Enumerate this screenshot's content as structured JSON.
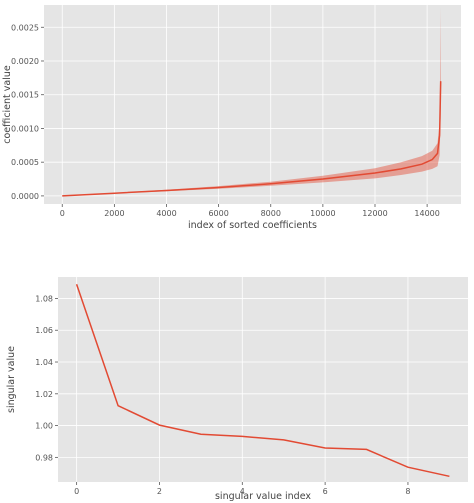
{
  "chart_data": [
    {
      "type": "area",
      "xlabel": "index of sorted coefficients",
      "ylabel": "coefficient value",
      "xlim": [
        -700,
        15300
      ],
      "ylim": [
        -0.00012,
        0.00283
      ],
      "xticks": [
        0,
        2000,
        4000,
        6000,
        8000,
        10000,
        12000,
        14000
      ],
      "yticks": [
        0.0,
        0.0005,
        0.001,
        0.0015,
        0.002,
        0.0025
      ],
      "ytick_labels": [
        "0.0000",
        "0.0005",
        "0.0010",
        "0.0015",
        "0.0020",
        "0.0025"
      ],
      "grid": true,
      "color": "#e24a33",
      "series": [
        {
          "x": [
            0,
            2000,
            4000,
            6000,
            8000,
            10000,
            12000,
            13000,
            13800,
            14200,
            14400,
            14480,
            14520
          ],
          "mean": [
            0.0,
            4e-05,
            8e-05,
            0.000125,
            0.00018,
            0.00025,
            0.00034,
            0.0004,
            0.00047,
            0.00054,
            0.00063,
            0.0009,
            0.0017
          ],
          "lower": [
            0.0,
            3.5e-05,
            7e-05,
            0.000105,
            0.00015,
            0.0002,
            0.00026,
            0.00031,
            0.00036,
            0.0004,
            0.00044,
            0.0006,
            0.0012
          ],
          "upper": [
            0.0,
            4.5e-05,
            9e-05,
            0.000145,
            0.00021,
            0.0003,
            0.00041,
            0.0005,
            0.00059,
            0.00067,
            0.00078,
            0.0011,
            0.0028
          ]
        }
      ]
    },
    {
      "type": "line",
      "xlabel": "singular value index",
      "ylabel": "singular value",
      "xlim": [
        -0.45,
        9.45
      ],
      "ylim": [
        0.9645,
        1.0935
      ],
      "xticks": [
        0,
        2,
        4,
        6,
        8
      ],
      "yticks": [
        0.98,
        1.0,
        1.02,
        1.04,
        1.06,
        1.08
      ],
      "ytick_labels": [
        "0.98",
        "1.00",
        "1.02",
        "1.04",
        "1.06",
        "1.08"
      ],
      "grid": true,
      "color": "#e24a33",
      "x": [
        0,
        1,
        2,
        3,
        4,
        5,
        6,
        7,
        8,
        9
      ],
      "values": [
        1.089,
        1.0125,
        1.0003,
        0.9946,
        0.9932,
        0.991,
        0.9859,
        0.985,
        0.9738,
        0.9681
      ]
    }
  ]
}
